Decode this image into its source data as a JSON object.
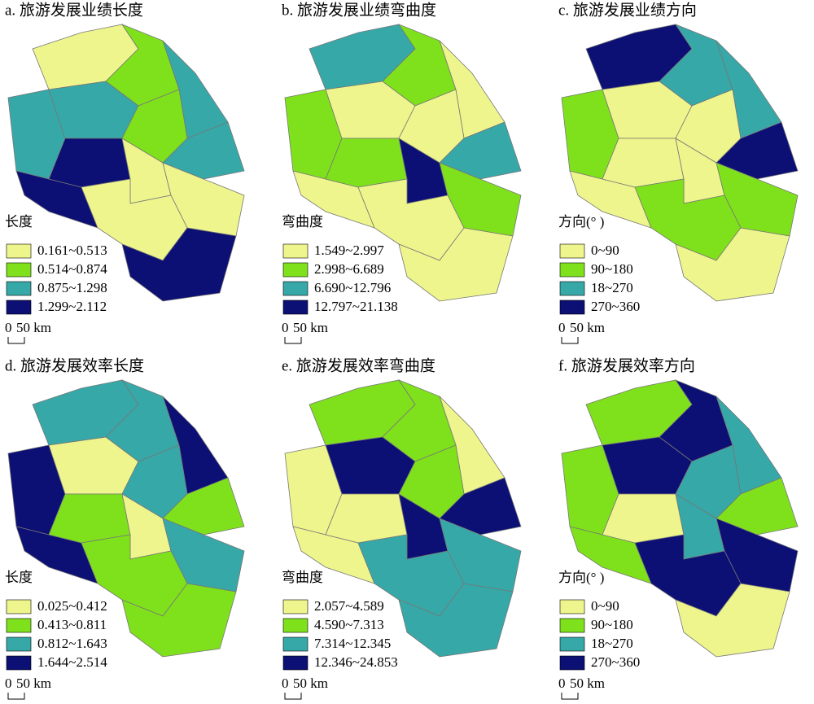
{
  "panels": [
    {
      "title": "a. 旅游发展业绩长度",
      "legend_title": "长度",
      "legend": [
        {
          "label": "0.161~0.513",
          "color": "#eef58c"
        },
        {
          "label": "0.514~0.874",
          "color": "#7fe11b"
        },
        {
          "label": "0.875~1.298",
          "color": "#36a8a8"
        },
        {
          "label": "1.299~2.112",
          "color": "#0c0f73"
        }
      ],
      "scale": {
        "zero": "0",
        "label": "50 km"
      }
    },
    {
      "title": "b. 旅游发展业绩弯曲度",
      "legend_title": "弯曲度",
      "legend": [
        {
          "label": "1.549~2.997",
          "color": "#eef58c"
        },
        {
          "label": "2.998~6.689",
          "color": "#7fe11b"
        },
        {
          "label": "6.690~12.796",
          "color": "#36a8a8"
        },
        {
          "label": "12.797~21.138",
          "color": "#0c0f73"
        }
      ],
      "scale": {
        "zero": "0",
        "label": "50 km"
      }
    },
    {
      "title": "c. 旅游发展业绩方向",
      "legend_title": "方向(°  )",
      "legend": [
        {
          "label": "0~90",
          "color": "#eef58c"
        },
        {
          "label": "90~180",
          "color": "#7fe11b"
        },
        {
          "label": "18~270",
          "color": "#36a8a8"
        },
        {
          "label": "270~360",
          "color": "#0c0f73"
        }
      ],
      "scale": {
        "zero": "0",
        "label": "50 km"
      }
    },
    {
      "title": "d. 旅游发展效率长度",
      "legend_title": "长度",
      "legend": [
        {
          "label": "0.025~0.412",
          "color": "#eef58c"
        },
        {
          "label": "0.413~0.811",
          "color": "#7fe11b"
        },
        {
          "label": "0.812~1.643",
          "color": "#36a8a8"
        },
        {
          "label": "1.644~2.514",
          "color": "#0c0f73"
        }
      ],
      "scale": {
        "zero": "0",
        "label": "50 km"
      }
    },
    {
      "title": "e. 旅游发展效率弯曲度",
      "legend_title": "弯曲度",
      "legend": [
        {
          "label": "2.057~4.589",
          "color": "#eef58c"
        },
        {
          "label": "4.590~7.313",
          "color": "#7fe11b"
        },
        {
          "label": "7.314~12.345",
          "color": "#36a8a8"
        },
        {
          "label": "12.346~24.853",
          "color": "#0c0f73"
        }
      ],
      "scale": {
        "zero": "0",
        "label": "50 km"
      }
    },
    {
      "title": "f. 旅游发展效率方向",
      "legend_title": "方向(°  )",
      "legend": [
        {
          "label": "0~90",
          "color": "#eef58c"
        },
        {
          "label": "90~180",
          "color": "#7fe11b"
        },
        {
          "label": "18~270",
          "color": "#36a8a8"
        },
        {
          "label": "270~360",
          "color": "#0c0f73"
        }
      ],
      "scale": {
        "zero": "0",
        "label": "50 km"
      }
    }
  ]
}
